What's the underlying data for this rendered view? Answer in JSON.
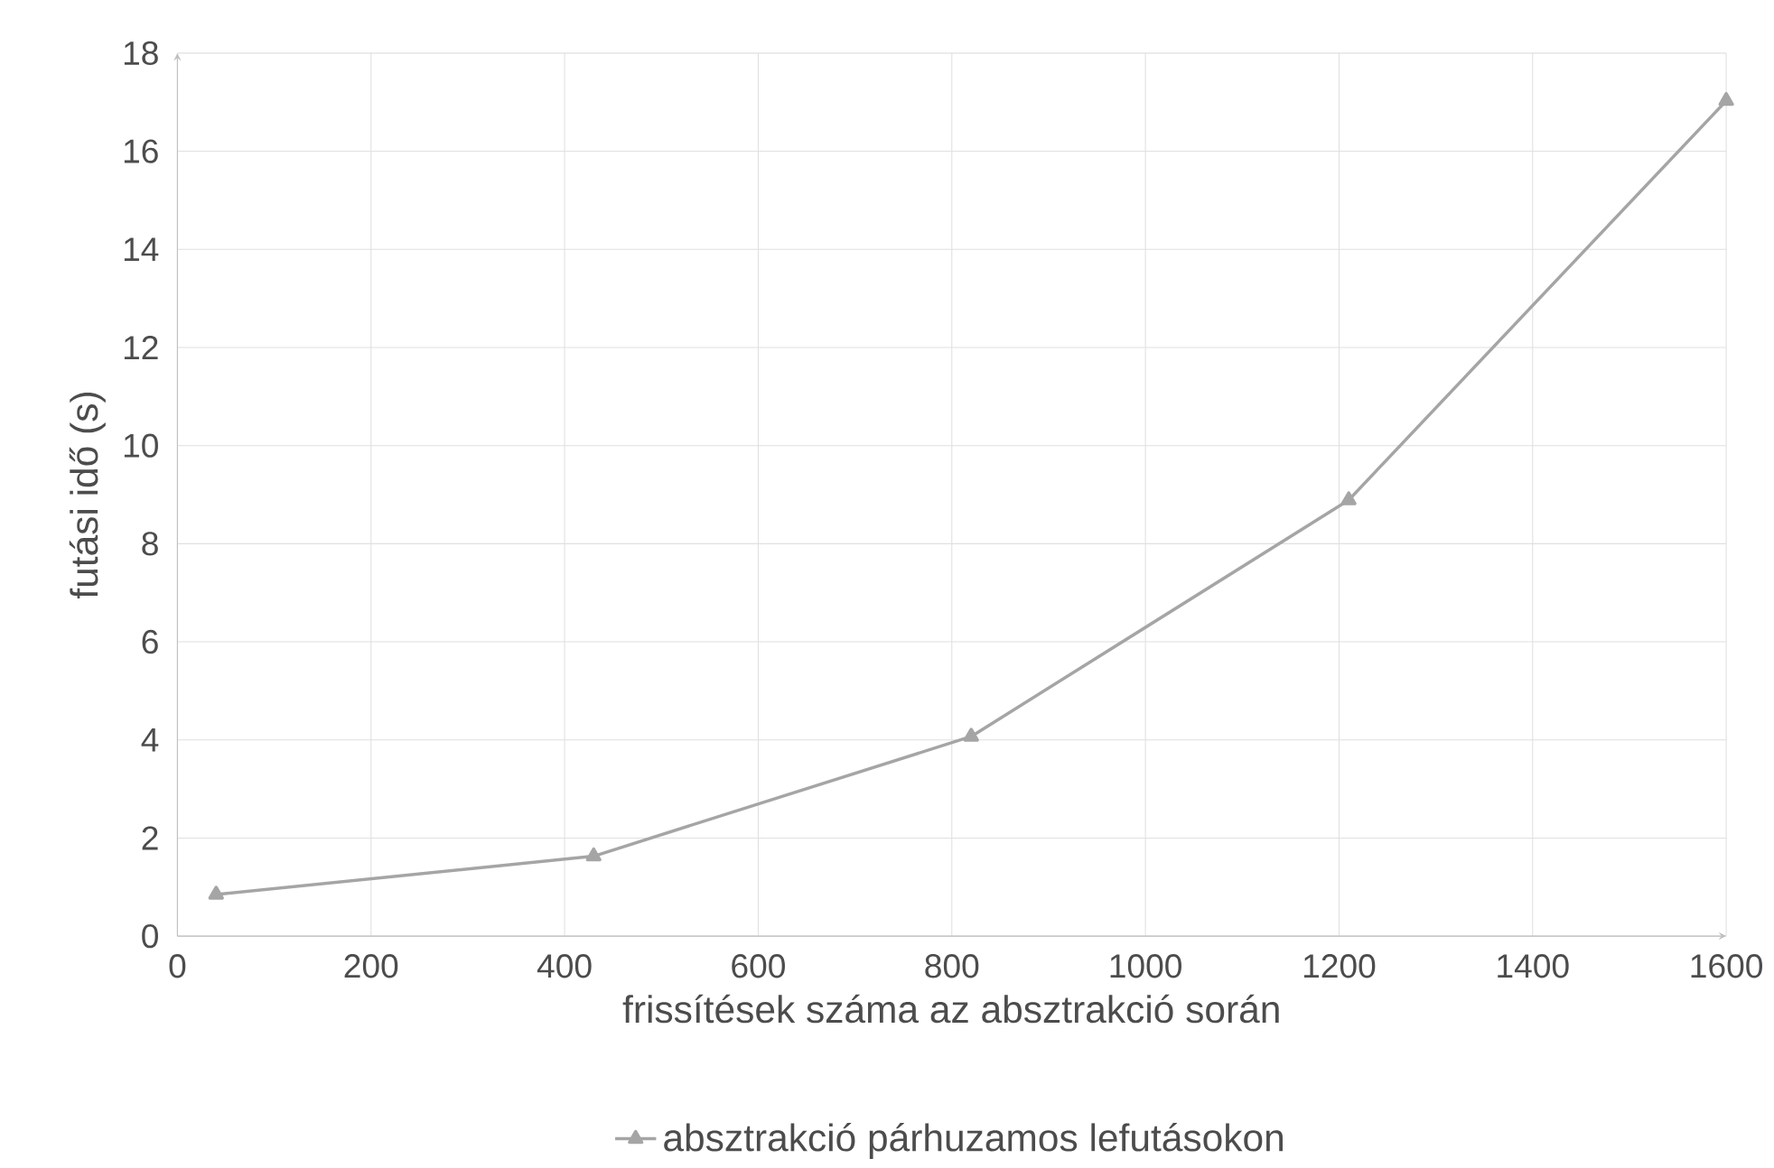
{
  "chart_data": {
    "type": "line",
    "xlabel": "frissítések száma az absztrakció során",
    "ylabel": "futási idő (s)",
    "x": [
      40,
      430,
      820,
      1210,
      1600
    ],
    "series": [
      {
        "name": "absztrakció párhuzamos lefutásokon",
        "color": "#a5a5a5",
        "values": [
          0.85,
          1.63,
          4.07,
          8.89,
          17.03
        ]
      }
    ],
    "xlim": [
      0,
      1600
    ],
    "xticks": [
      0,
      200,
      400,
      600,
      800,
      1000,
      1200,
      1400,
      1600
    ],
    "ylim": [
      0,
      18
    ],
    "yticks": [
      0,
      2,
      4,
      6,
      8,
      10,
      12,
      14,
      16,
      18
    ],
    "grid": true,
    "legend": "bottom",
    "marker": "triangle",
    "line_style": "solid"
  }
}
